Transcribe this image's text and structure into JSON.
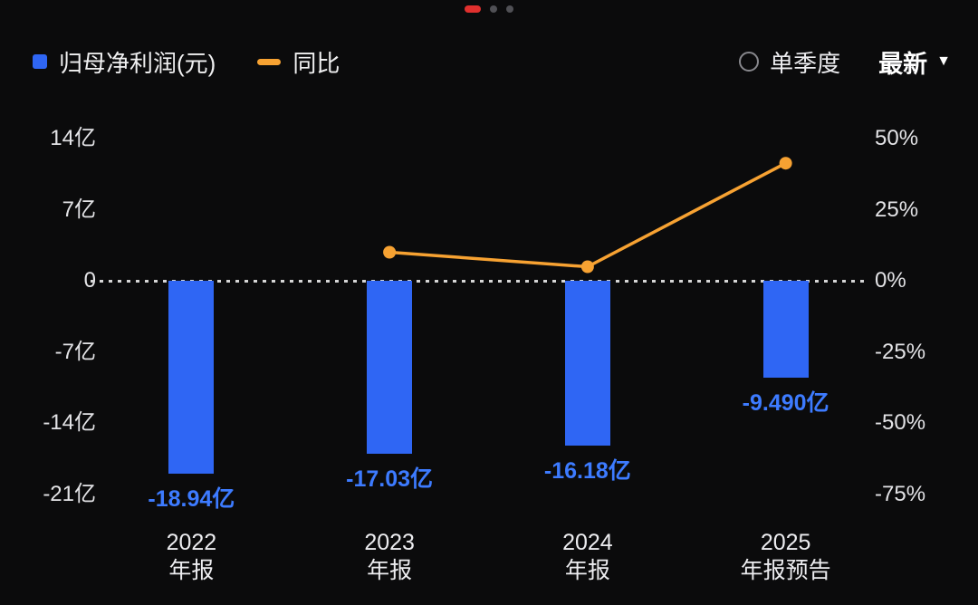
{
  "page": {
    "bg": "#0b0b0c",
    "pagination": {
      "count": 3,
      "active_index": 0,
      "active_color": "#e0302e",
      "dot_color": "#505055"
    }
  },
  "legend": [
    {
      "label": "归母净利润(元)",
      "type": "bar",
      "color": "#2f66f4"
    },
    {
      "label": "同比",
      "type": "line",
      "color": "#f7a232"
    }
  ],
  "controls": {
    "radio_label": "单季度",
    "dropdown_label": "最新",
    "caret_icon": "▼"
  },
  "chart_data": {
    "type": "combo",
    "categories": [
      [
        "2022",
        "年报"
      ],
      [
        "2023",
        "年报"
      ],
      [
        "2024",
        "年报"
      ],
      [
        "2025",
        "年报预告"
      ]
    ],
    "series": [
      {
        "name": "归母净利润(元)",
        "type": "bar",
        "unit": "亿",
        "color": "#2f66f4",
        "label_color": "#3d7bff",
        "values": [
          -18.94,
          -17.03,
          -16.18,
          -9.49
        ],
        "labels": [
          "-18.94亿",
          "-17.03亿",
          "-16.18亿",
          "-9.490亿"
        ]
      },
      {
        "name": "同比",
        "type": "line",
        "unit": "%",
        "color": "#f7a232",
        "values": [
          null,
          10.08,
          4.99,
          41.35
        ]
      }
    ],
    "left_axis": {
      "min": -21,
      "max": 14,
      "ticks": [
        {
          "v": 14,
          "label": "14亿"
        },
        {
          "v": 7,
          "label": "7亿"
        },
        {
          "v": 0,
          "label": "0"
        },
        {
          "v": -7,
          "label": "-7亿"
        },
        {
          "v": -14,
          "label": "-14亿"
        },
        {
          "v": -21,
          "label": "-21亿"
        }
      ]
    },
    "right_axis": {
      "min": -75,
      "max": 50,
      "ticks": [
        {
          "v": 50,
          "label": "50%"
        },
        {
          "v": 25,
          "label": "25%"
        },
        {
          "v": 0,
          "label": "0%"
        },
        {
          "v": -25,
          "label": "-25%"
        },
        {
          "v": -50,
          "label": "-50%"
        },
        {
          "v": -75,
          "label": "-75%"
        }
      ]
    },
    "zero_line": {
      "style": "dotted",
      "color": "#d6d6d6"
    },
    "grid": false,
    "legend_position": "top-left"
  }
}
